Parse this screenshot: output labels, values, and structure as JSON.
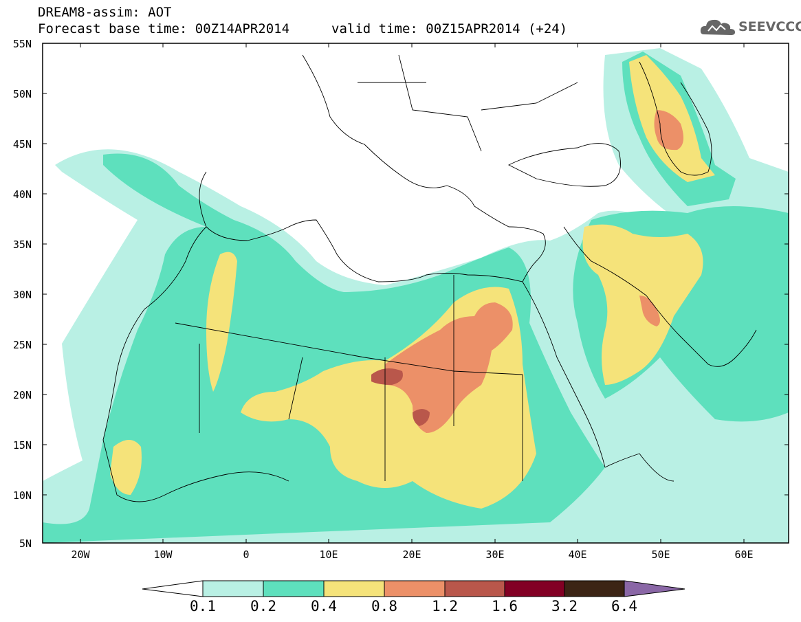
{
  "header": {
    "title": "DREAM8-assim: AOT",
    "forecast": "Forecast base time: 00Z14APR2014",
    "valid": "valid time: 00Z15APR2014 (+24)",
    "logo": "SEEVCCC"
  },
  "axes": {
    "lat_labels": [
      "55N",
      "50N",
      "45N",
      "40N",
      "35N",
      "30N",
      "25N",
      "20N",
      "15N",
      "10N",
      "5N"
    ],
    "lon_labels": [
      "20W",
      "10W",
      "0",
      "10E",
      "20E",
      "30E",
      "40E",
      "50E",
      "60E"
    ]
  },
  "colorbar": {
    "labels": [
      "0.1",
      "0.2",
      "0.4",
      "0.8",
      "1.2",
      "1.6",
      "3.2",
      "6.4"
    ],
    "colors": [
      "#ffffff",
      "#b9f0e4",
      "#5ee0bd",
      "#f5e37a",
      "#ec9068",
      "#b9574b",
      "#820024",
      "#3c2415",
      "#8a67a6"
    ]
  },
  "map": {
    "lon_range": [
      -25,
      65
    ],
    "lat_range": [
      5,
      55
    ],
    "fill_colors": {
      "c01": "#b9f0e4",
      "c02": "#5ee0bd",
      "c04": "#f5e37a",
      "c08": "#ec9068",
      "c12": "#b9574b"
    }
  }
}
